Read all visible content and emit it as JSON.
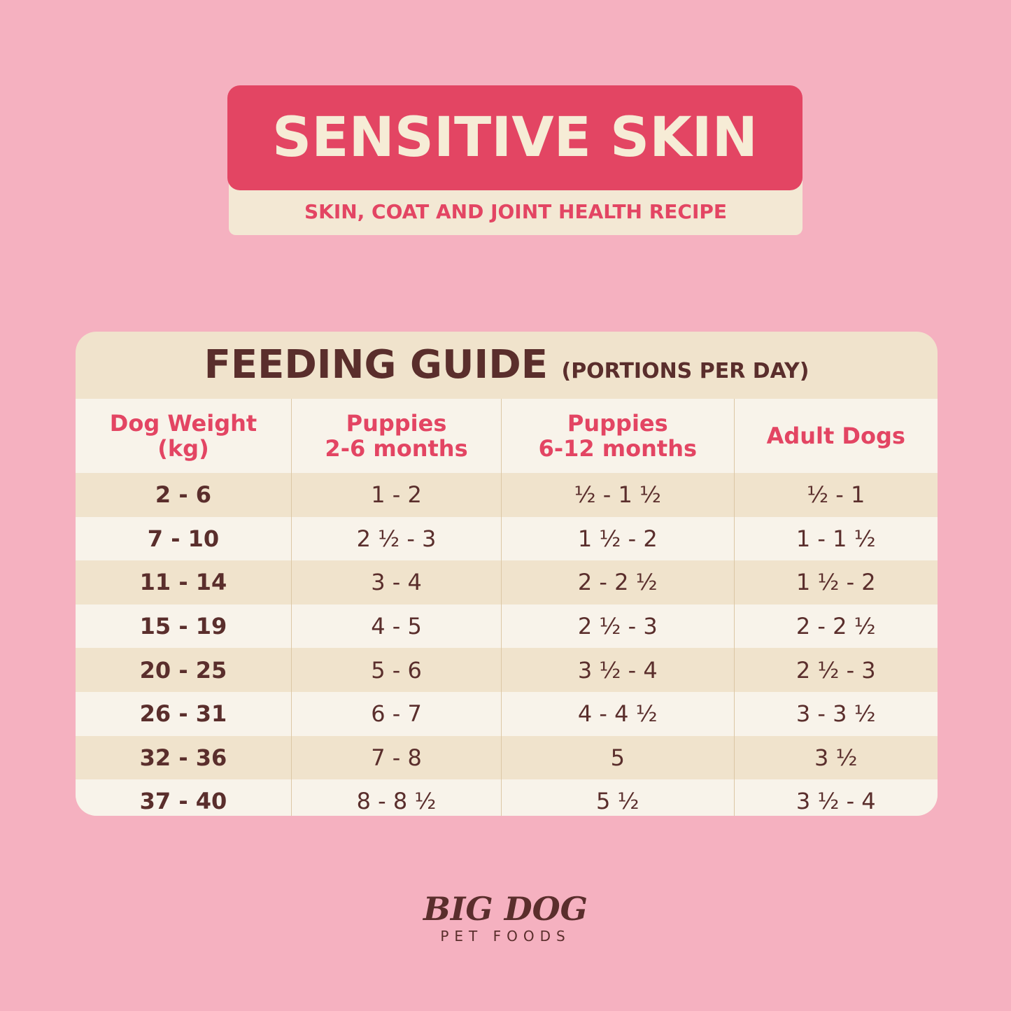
{
  "header": {
    "title": "SENSITIVE SKIN",
    "subtitle": "SKIN, COAT AND JOINT HEALTH RECIPE"
  },
  "table": {
    "title": "FEEDING GUIDE",
    "title_note": "(PORTIONS PER DAY)",
    "columns": [
      [
        "Dog Weight",
        "(kg)"
      ],
      [
        "Puppies",
        "2-6 months"
      ],
      [
        "Puppies",
        "6-12 months"
      ],
      [
        "Adult Dogs"
      ]
    ],
    "rows": [
      [
        "2 - 6",
        "1 - 2",
        "½ - 1 ½",
        "½ - 1"
      ],
      [
        "7 - 10",
        "2 ½ - 3",
        "1 ½ - 2",
        "1 - 1 ½"
      ],
      [
        "11 - 14",
        "3 - 4",
        "2 - 2 ½",
        "1 ½ - 2"
      ],
      [
        "15 - 19",
        "4 - 5",
        "2 ½ - 3",
        "2 - 2 ½"
      ],
      [
        "20 - 25",
        "5 - 6",
        "3 ½ - 4",
        "2 ½ - 3"
      ],
      [
        "26 - 31",
        "6 - 7",
        "4 - 4 ½",
        "3 - 3 ½"
      ],
      [
        "32 - 36",
        "7 - 8",
        "5",
        "3 ½"
      ],
      [
        "37 - 40",
        "8 - 8 ½",
        "5 ½",
        "3 ½ - 4"
      ]
    ]
  },
  "footer": {
    "brand": "BIG DOG",
    "brand_sub": "PET FOODS"
  }
}
